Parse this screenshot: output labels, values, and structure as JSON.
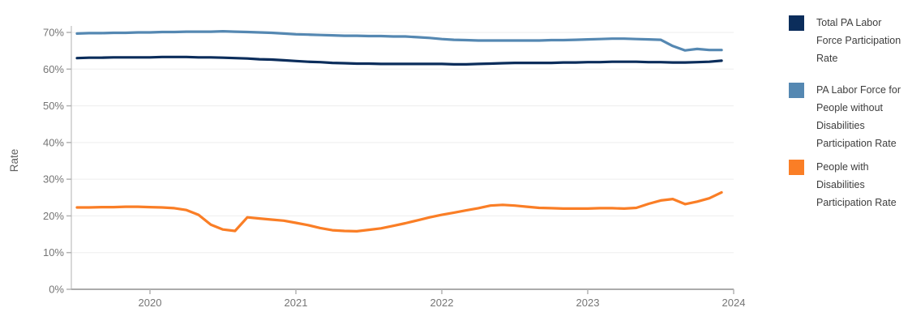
{
  "chart_data": {
    "type": "line",
    "title": "",
    "xlabel": "",
    "ylabel": "Rate",
    "y_unit": "percent",
    "ylim": [
      0,
      70
    ],
    "yticks": [
      0,
      10,
      20,
      30,
      40,
      50,
      60,
      70
    ],
    "ytick_labels": [
      "0%",
      "10%",
      "20%",
      "30%",
      "40%",
      "50%",
      "60%",
      "70%"
    ],
    "xticks": [
      2020,
      2021,
      2022,
      2023,
      2024
    ],
    "xtick_labels": [
      "2020",
      "2021",
      "2022",
      "2023",
      "2024"
    ],
    "xlim": [
      2019.46,
      2024.04
    ],
    "grid": "horizontal",
    "legend_position": "right",
    "x_frequency": "monthly",
    "x_range_note": "Jul 2019 - Dec 2023",
    "x": [
      2019.5,
      2019.583,
      2019.667,
      2019.75,
      2019.833,
      2019.917,
      2020.0,
      2020.083,
      2020.167,
      2020.25,
      2020.333,
      2020.417,
      2020.5,
      2020.583,
      2020.667,
      2020.75,
      2020.833,
      2020.917,
      2021.0,
      2021.083,
      2021.167,
      2021.25,
      2021.333,
      2021.417,
      2021.5,
      2021.583,
      2021.667,
      2021.75,
      2021.833,
      2021.917,
      2022.0,
      2022.083,
      2022.167,
      2022.25,
      2022.333,
      2022.417,
      2022.5,
      2022.583,
      2022.667,
      2022.75,
      2022.833,
      2022.917,
      2023.0,
      2023.083,
      2023.167,
      2023.25,
      2023.333,
      2023.417,
      2023.5,
      2023.583,
      2023.667,
      2023.75,
      2023.833,
      2023.917
    ],
    "series": [
      {
        "name": "Total PA Labor Force Participation Rate",
        "color": "#0b2d5b",
        "values": [
          63.0,
          63.1,
          63.1,
          63.2,
          63.2,
          63.2,
          63.2,
          63.3,
          63.3,
          63.3,
          63.2,
          63.2,
          63.1,
          63.0,
          62.9,
          62.7,
          62.6,
          62.4,
          62.2,
          62.0,
          61.9,
          61.7,
          61.6,
          61.5,
          61.5,
          61.4,
          61.4,
          61.4,
          61.4,
          61.4,
          61.4,
          61.3,
          61.3,
          61.4,
          61.5,
          61.6,
          61.7,
          61.7,
          61.7,
          61.7,
          61.8,
          61.8,
          61.9,
          61.9,
          62.0,
          62.0,
          62.0,
          61.9,
          61.9,
          61.8,
          61.8,
          61.9,
          62.0,
          62.3
        ]
      },
      {
        "name": "PA Labor Force for People without Disabilities Participation Rate",
        "color": "#5588b2",
        "values": [
          69.7,
          69.8,
          69.8,
          69.9,
          69.9,
          70.0,
          70.0,
          70.1,
          70.1,
          70.2,
          70.2,
          70.2,
          70.3,
          70.2,
          70.1,
          70.0,
          69.9,
          69.7,
          69.5,
          69.4,
          69.3,
          69.2,
          69.1,
          69.1,
          69.0,
          69.0,
          68.9,
          68.9,
          68.7,
          68.5,
          68.2,
          68.0,
          67.9,
          67.8,
          67.8,
          67.8,
          67.8,
          67.8,
          67.8,
          67.9,
          67.9,
          68.0,
          68.1,
          68.2,
          68.3,
          68.3,
          68.2,
          68.1,
          68.0,
          66.3,
          65.1,
          65.5,
          65.2,
          65.2
        ]
      },
      {
        "name": "People with Disabilities Participation Rate",
        "color": "#fa7e26",
        "values": [
          22.3,
          22.3,
          22.4,
          22.4,
          22.5,
          22.5,
          22.4,
          22.3,
          22.1,
          21.6,
          20.3,
          17.6,
          16.3,
          15.9,
          19.6,
          19.3,
          19.0,
          18.7,
          18.1,
          17.5,
          16.7,
          16.1,
          15.9,
          15.8,
          16.2,
          16.6,
          17.3,
          18.0,
          18.8,
          19.6,
          20.3,
          20.9,
          21.5,
          22.1,
          22.8,
          23.0,
          22.8,
          22.5,
          22.2,
          22.1,
          22.0,
          22.0,
          22.0,
          22.1,
          22.1,
          22.0,
          22.2,
          23.3,
          24.2,
          24.6,
          23.2,
          23.9,
          24.8,
          26.4
        ]
      }
    ]
  },
  "legend": {
    "items": [
      {
        "label": "Total PA Labor Force Participation Rate",
        "color": "#0b2d5b"
      },
      {
        "label": "PA Labor Force for People without Disabilities Participation Rate",
        "color": "#5588b2"
      },
      {
        "label": "People with Disabilities Participation Rate",
        "color": "#fa7e26"
      }
    ]
  },
  "colors": {
    "grid_line": "#ededed",
    "y_axis_line": "#cbcbcb",
    "x_axis_line": "#ababab",
    "tick_mark": "#b3b3b3",
    "tick_label": "#757575"
  }
}
